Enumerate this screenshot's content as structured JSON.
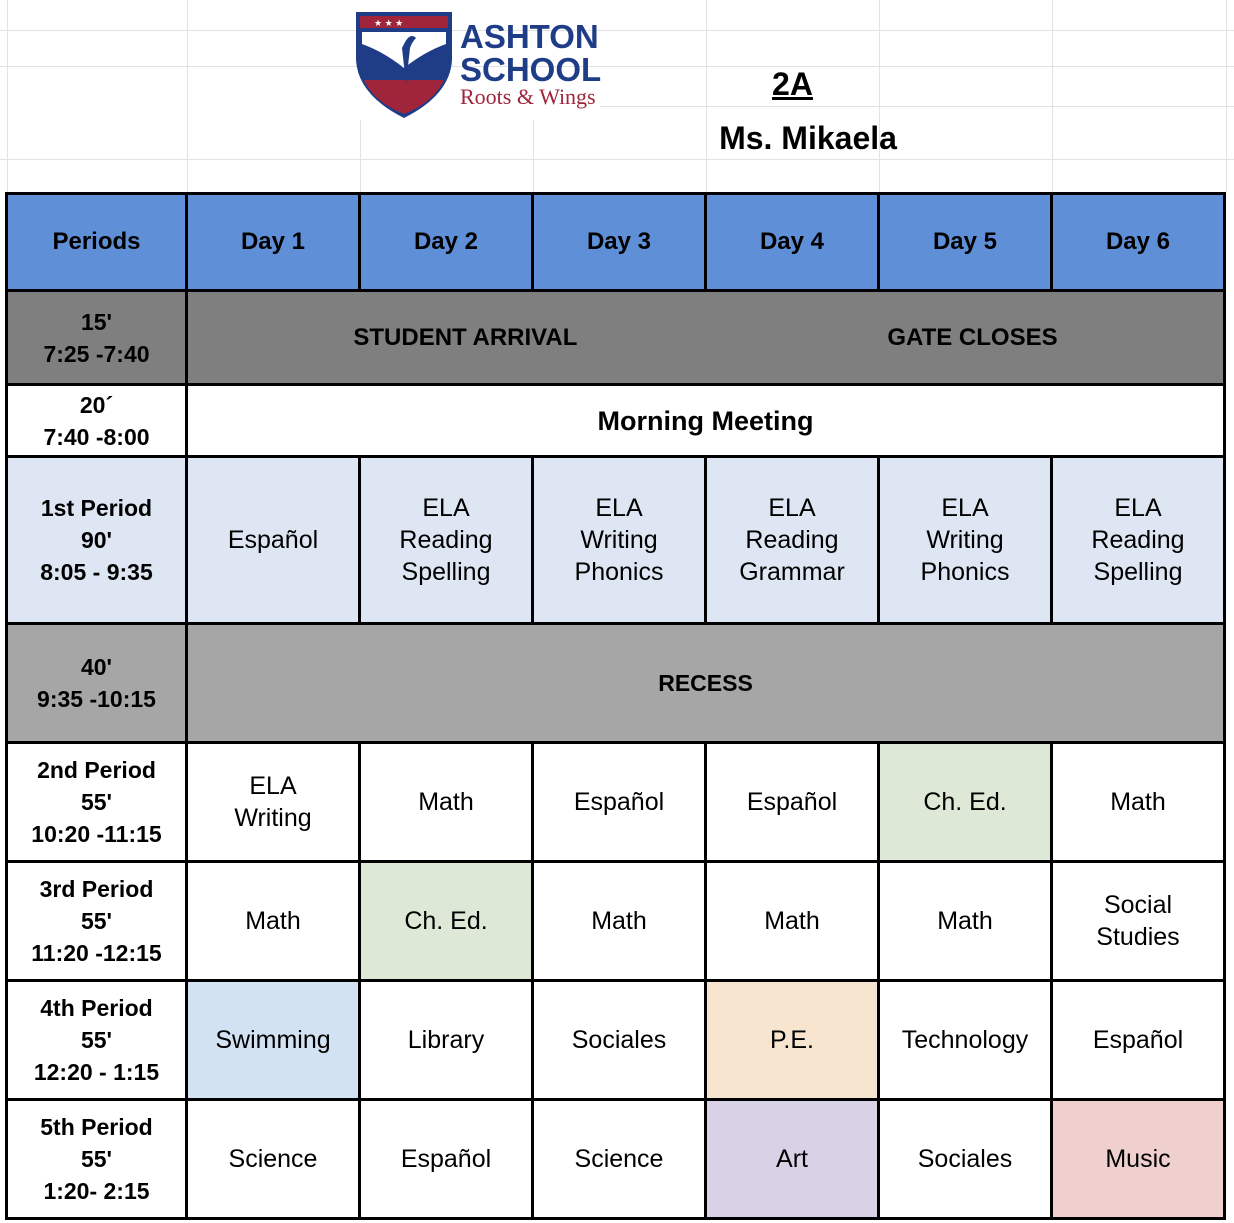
{
  "header": {
    "school_name_line1": "ASHTON",
    "school_name_line2": "SCHOOL",
    "tagline": "Roots & Wings",
    "class_name": "2A",
    "teacher": "Ms. Mikaela"
  },
  "colors": {
    "header_blue": "#5f8fd6",
    "arrival_gray": "#7f7f7f",
    "recess_gray": "#a6a6a6",
    "first_period_blue": "#dde6f2",
    "ched_green": "#dde9d6",
    "swimming_blue": "#d3e2f2",
    "pe_orange": "#f8e5d0",
    "art_purple": "#d9d2e6",
    "music_pink": "#efd0cf"
  },
  "schedule": {
    "columns": [
      "Periods",
      "Day 1",
      "Day 2",
      "Day 3",
      "Day 4",
      "Day 5",
      "Day 6"
    ],
    "arrival": {
      "period": [
        "15'",
        "7:25 -7:40"
      ],
      "label1": "STUDENT ARRIVAL",
      "label2": "GATE CLOSES"
    },
    "meeting": {
      "period": [
        "20´",
        "7:40 -8:00"
      ],
      "label": "Morning Meeting"
    },
    "first": {
      "period": [
        "1st Period",
        "90'",
        "8:05 - 9:35"
      ],
      "cells": [
        [
          "Español"
        ],
        [
          "ELA",
          "Reading",
          "Spelling"
        ],
        [
          "ELA",
          "Writing",
          "Phonics"
        ],
        [
          "ELA",
          "Reading",
          "Grammar"
        ],
        [
          "ELA",
          "Writing",
          "Phonics"
        ],
        [
          "ELA",
          "Reading",
          "Spelling"
        ]
      ]
    },
    "recess": {
      "period": [
        "40'",
        "9:35 -10:15"
      ],
      "label": "RECESS"
    },
    "periods": [
      {
        "period": [
          "2nd Period",
          "55'",
          "10:20 -11:15"
        ],
        "cells": [
          [
            "ELA",
            "Writing"
          ],
          [
            "Math"
          ],
          [
            "Español"
          ],
          [
            "Español"
          ],
          [
            "Ch. Ed."
          ],
          [
            "Math"
          ]
        ],
        "colors": [
          "",
          "",
          "",
          "",
          "#dde9d6",
          ""
        ]
      },
      {
        "period": [
          "3rd Period",
          "55'",
          "11:20 -12:15"
        ],
        "cells": [
          [
            "Math"
          ],
          [
            "Ch. Ed."
          ],
          [
            "Math"
          ],
          [
            "Math"
          ],
          [
            "Math"
          ],
          [
            "Social",
            "Studies"
          ]
        ],
        "colors": [
          "",
          "#dde9d6",
          "",
          "",
          "",
          ""
        ]
      },
      {
        "period": [
          "4th Period",
          "55'",
          "12:20 - 1:15"
        ],
        "cells": [
          [
            "Swimming"
          ],
          [
            "Library"
          ],
          [
            "Sociales"
          ],
          [
            "P.E."
          ],
          [
            "Technology"
          ],
          [
            "Español"
          ]
        ],
        "colors": [
          "#d3e2f2",
          "",
          "",
          "#f8e5d0",
          "",
          ""
        ]
      },
      {
        "period": [
          "5th Period",
          "55'",
          "1:20- 2:15"
        ],
        "cells": [
          [
            "Science"
          ],
          [
            "Español"
          ],
          [
            "Science"
          ],
          [
            "Art"
          ],
          [
            "Sociales"
          ],
          [
            "Music"
          ]
        ],
        "colors": [
          "",
          "",
          "",
          "#d9d2e6",
          "",
          "#efd0cf"
        ]
      }
    ]
  }
}
